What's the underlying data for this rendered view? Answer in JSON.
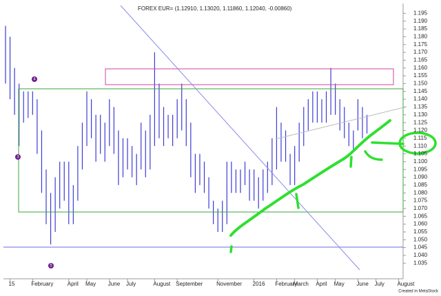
{
  "chart_data": {
    "type": "ohlc",
    "title": "FOREX EUR= (1.12910, 1.13020, 1.11860, 1.12040, -0.00860)",
    "footer": "Created in MetaStock",
    "color": "#3b3bd6",
    "high": [
      1.187,
      1.18,
      1.16,
      1.15,
      1.145,
      1.145,
      1.145,
      1.14,
      1.12,
      1.095,
      1.08,
      1.09,
      1.1,
      1.1,
      1.1,
      1.085,
      1.11,
      1.125,
      1.145,
      1.14,
      1.13,
      1.13,
      1.125,
      1.14,
      1.135,
      1.12,
      1.115,
      1.115,
      1.11,
      1.105,
      1.125,
      1.12,
      1.13,
      1.17,
      1.15,
      1.135,
      1.13,
      1.13,
      1.14,
      1.15,
      1.14,
      1.125,
      1.105,
      1.105,
      1.1,
      1.09,
      1.075,
      1.07,
      1.075,
      1.1,
      1.1,
      1.095,
      1.095,
      1.1,
      1.095,
      1.095,
      1.09,
      1.095,
      1.1,
      1.115,
      1.135,
      1.125,
      1.12,
      1.105,
      1.11,
      1.125,
      1.135,
      1.14,
      1.145,
      1.145,
      1.14,
      1.145,
      1.16,
      1.15,
      1.14,
      1.135,
      1.125,
      1.12,
      1.14,
      1.135,
      1.13
    ],
    "low": [
      1.15,
      1.14,
      1.13,
      1.11,
      1.125,
      1.128,
      1.13,
      1.105,
      1.08,
      1.06,
      1.047,
      1.055,
      1.07,
      1.075,
      1.06,
      1.06,
      1.075,
      1.095,
      1.11,
      1.115,
      1.1,
      1.105,
      1.1,
      1.11,
      1.105,
      1.085,
      1.09,
      1.095,
      1.09,
      1.085,
      1.095,
      1.09,
      1.095,
      1.11,
      1.115,
      1.11,
      1.115,
      1.11,
      1.115,
      1.12,
      1.11,
      1.09,
      1.08,
      1.085,
      1.08,
      1.07,
      1.06,
      1.055,
      1.055,
      1.06,
      1.08,
      1.08,
      1.08,
      1.085,
      1.075,
      1.075,
      1.07,
      1.075,
      1.08,
      1.085,
      1.095,
      1.1,
      1.1,
      1.085,
      1.085,
      1.1,
      1.11,
      1.12,
      1.125,
      1.125,
      1.125,
      1.125,
      1.13,
      1.13,
      1.12,
      1.115,
      1.11,
      1.108,
      1.12,
      1.115,
      1.118
    ],
    "xlim": [
      0,
      88
    ],
    "xticks": [
      {
        "value": 1,
        "label": "15"
      },
      {
        "value": 6,
        "label": "February"
      },
      {
        "value": 14,
        "label": "April"
      },
      {
        "value": 18,
        "label": "May"
      },
      {
        "value": 23,
        "label": "June"
      },
      {
        "value": 27,
        "label": "July"
      },
      {
        "value": 33,
        "label": "August"
      },
      {
        "value": 38,
        "label": "September"
      },
      {
        "value": 47,
        "label": "November"
      },
      {
        "value": 55,
        "label": "2016"
      },
      {
        "value": 60,
        "label": "February"
      },
      {
        "value": 64,
        "label": "March"
      },
      {
        "value": 69,
        "label": "April"
      },
      {
        "value": 73,
        "label": "May"
      },
      {
        "value": 78,
        "label": "June"
      },
      {
        "value": 82,
        "label": "July"
      },
      {
        "value": 87,
        "label": "August"
      }
    ],
    "ylim": [
      1.025,
      1.2
    ],
    "yticks": [
      1.035,
      {
        "value": 1.04,
        "label": "1.040"
      },
      1.045,
      {
        "value": 1.05,
        "label": "1.050"
      },
      1.055,
      {
        "value": 1.06,
        "label": "1.060"
      },
      1.065,
      {
        "value": 1.07,
        "label": "1.070"
      },
      1.075,
      {
        "value": 1.08,
        "label": "1.080"
      },
      1.085,
      {
        "value": 1.09,
        "label": "1.090"
      },
      1.095,
      {
        "value": 1.1,
        "label": "1.100"
      },
      1.105,
      {
        "value": 1.11,
        "label": "1.110"
      },
      1.115,
      {
        "value": 1.12,
        "label": "1.120"
      },
      1.125,
      {
        "value": 1.13,
        "label": "1.130"
      },
      1.135,
      {
        "value": 1.14,
        "label": "1.140"
      },
      1.145,
      {
        "value": 1.15,
        "label": "1.150"
      },
      1.155,
      {
        "value": 1.16,
        "label": "1.160"
      },
      1.165,
      {
        "value": 1.17,
        "label": "1.170"
      },
      1.175,
      {
        "value": 1.18,
        "label": "1.180"
      },
      1.185,
      {
        "value": 1.19,
        "label": "1.190"
      },
      1.195
    ],
    "annotations": [
      "4",
      "3",
      "5"
    ]
  }
}
